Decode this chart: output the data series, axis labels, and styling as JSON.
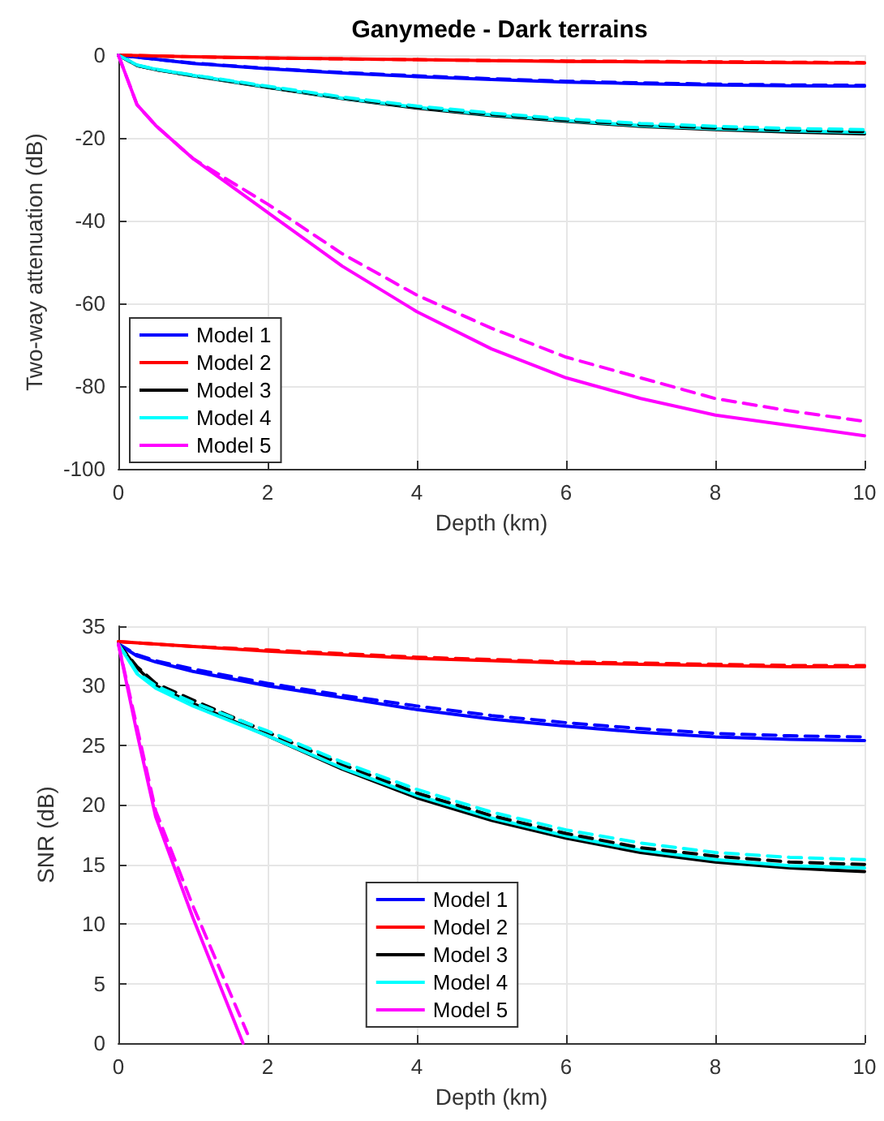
{
  "chart_data": [
    {
      "type": "line",
      "title": "Ganymede - Dark terrains",
      "xlabel": "Depth (km)",
      "ylabel": "Two-way attenuation (dB)",
      "x": [
        0,
        0.25,
        0.5,
        1,
        2,
        3,
        4,
        5,
        6,
        7,
        8,
        9,
        10
      ],
      "series": [
        {
          "name": "Model 1",
          "color": "#0000ff",
          "values": [
            0,
            -0.5,
            -1,
            -2,
            -3.3,
            -4.3,
            -5.2,
            -5.9,
            -6.5,
            -6.9,
            -7.2,
            -7.4,
            -7.5
          ]
        },
        {
          "name": "Model 2",
          "color": "#ff0000",
          "values": [
            0,
            -0.1,
            -0.2,
            -0.4,
            -0.7,
            -0.9,
            -1.1,
            -1.3,
            -1.5,
            -1.6,
            -1.7,
            -1.8,
            -1.9
          ]
        },
        {
          "name": "Model 3",
          "color": "#000000",
          "values": [
            0,
            -2.5,
            -3.5,
            -5,
            -7.8,
            -10.5,
            -12.8,
            -14.6,
            -16,
            -17.2,
            -18,
            -18.6,
            -19
          ]
        },
        {
          "name": "Model 4",
          "color": "#00ffff",
          "values": [
            0,
            -2.4,
            -3.4,
            -4.9,
            -7.7,
            -10.4,
            -12.6,
            -14.4,
            -15.8,
            -17,
            -17.8,
            -18.3,
            -18.7
          ]
        },
        {
          "name": "Model 5",
          "color": "#ff00ff",
          "values": [
            0,
            -12,
            -17,
            -25,
            -38,
            -51,
            -62,
            -71,
            -78,
            -83,
            -87,
            -89.5,
            -92
          ]
        },
        {
          "color": "#0000ff",
          "line_style": "dashed",
          "values": [
            0,
            -0.5,
            -1,
            -1.9,
            -3.2,
            -4.2,
            -5,
            -5.7,
            -6.3,
            -6.7,
            -7,
            -7.2,
            -7.3
          ]
        },
        {
          "color": "#ff0000",
          "line_style": "dashed",
          "values": [
            0,
            -0.1,
            -0.2,
            -0.4,
            -0.7,
            -0.9,
            -1.1,
            -1.3,
            -1.4,
            -1.5,
            -1.6,
            -1.7,
            -1.8
          ]
        },
        {
          "color": "#000000",
          "line_style": "dashed",
          "values": [
            0,
            -2.5,
            -3.5,
            -4.9,
            -7.7,
            -10.3,
            -12.6,
            -14.3,
            -15.7,
            -16.8,
            -17.6,
            -18.1,
            -18.5
          ]
        },
        {
          "color": "#00ffff",
          "line_style": "dashed",
          "values": [
            0,
            -2.4,
            -3.4,
            -4.8,
            -7.5,
            -10.1,
            -12.3,
            -14,
            -15.4,
            -16.5,
            -17.2,
            -17.7,
            -18
          ]
        },
        {
          "color": "#ff00ff",
          "line_style": "dashed",
          "values": [
            0,
            -12,
            -17,
            -25,
            -36,
            -48,
            -58,
            -66,
            -73,
            -78,
            -83,
            -86,
            -88.5
          ]
        }
      ],
      "xlim": [
        0,
        10
      ],
      "xticks": [
        0,
        2,
        4,
        6,
        8,
        10
      ],
      "ylim": [
        -100,
        0
      ],
      "yticks": [
        -100,
        -80,
        -60,
        -40,
        -20,
        0
      ],
      "grid": true,
      "legend": "bottom left",
      "marker": "none",
      "line_style": "solid"
    },
    {
      "type": "line",
      "xlabel": "Depth (km)",
      "ylabel": "SNR (dB)",
      "x": [
        0,
        0.25,
        0.5,
        1,
        2,
        3,
        4,
        5,
        6,
        7,
        8,
        9,
        10
      ],
      "series": [
        {
          "name": "Model 1",
          "color": "#0000ff",
          "values": [
            33.5,
            32.5,
            32,
            31.2,
            30,
            29,
            28,
            27.2,
            26.6,
            26.1,
            25.7,
            25.5,
            25.4
          ]
        },
        {
          "name": "Model 2",
          "color": "#ff0000",
          "values": [
            33.7,
            33.6,
            33.5,
            33.3,
            32.9,
            32.6,
            32.3,
            32.1,
            31.9,
            31.8,
            31.7,
            31.6,
            31.6
          ]
        },
        {
          "name": "Model 3",
          "color": "#000000",
          "values": [
            33.5,
            31.5,
            30,
            28.5,
            25.8,
            23,
            20.6,
            18.7,
            17.2,
            16,
            15.2,
            14.7,
            14.4
          ]
        },
        {
          "name": "Model 4",
          "color": "#00ffff",
          "values": [
            33.5,
            31,
            29.8,
            28.3,
            25.8,
            23.1,
            20.8,
            18.9,
            17.4,
            16.2,
            15.4,
            14.9,
            14.7
          ]
        },
        {
          "name": "Model 5",
          "color": "#ff00ff",
          "x": [
            0,
            0.25,
            0.5,
            1,
            1.67
          ],
          "values": [
            33.5,
            26,
            19,
            10.5,
            0
          ]
        },
        {
          "color": "#0000ff",
          "line_style": "dashed",
          "values": [
            33.5,
            32.6,
            32.1,
            31.4,
            30.2,
            29.2,
            28.3,
            27.5,
            26.9,
            26.4,
            26,
            25.8,
            25.7
          ]
        },
        {
          "color": "#ff0000",
          "line_style": "dashed",
          "values": [
            33.7,
            33.6,
            33.5,
            33.3,
            33,
            32.7,
            32.4,
            32.2,
            32,
            31.9,
            31.8,
            31.7,
            31.7
          ]
        },
        {
          "color": "#000000",
          "line_style": "dashed",
          "values": [
            33.5,
            31.6,
            30.2,
            28.8,
            26.1,
            23.4,
            21,
            19.1,
            17.6,
            16.4,
            15.7,
            15.2,
            15
          ]
        },
        {
          "color": "#00ffff",
          "line_style": "dashed",
          "values": [
            33.5,
            31.1,
            30,
            28.6,
            26.2,
            23.6,
            21.3,
            19.4,
            17.9,
            16.8,
            16,
            15.6,
            15.4
          ]
        },
        {
          "color": "#ff00ff",
          "line_style": "dashed",
          "x": [
            0,
            0.25,
            0.5,
            1,
            1.73
          ],
          "values": [
            33.5,
            26.5,
            19.5,
            11.5,
            0.8
          ]
        }
      ],
      "xlim": [
        0,
        10
      ],
      "xticks": [
        0,
        2,
        4,
        6,
        8,
        10
      ],
      "ylim": [
        0,
        35
      ],
      "yticks": [
        0,
        5,
        10,
        15,
        20,
        25,
        30,
        35
      ],
      "grid": true,
      "legend": "bottom",
      "marker": "none",
      "line_style": "solid"
    }
  ]
}
